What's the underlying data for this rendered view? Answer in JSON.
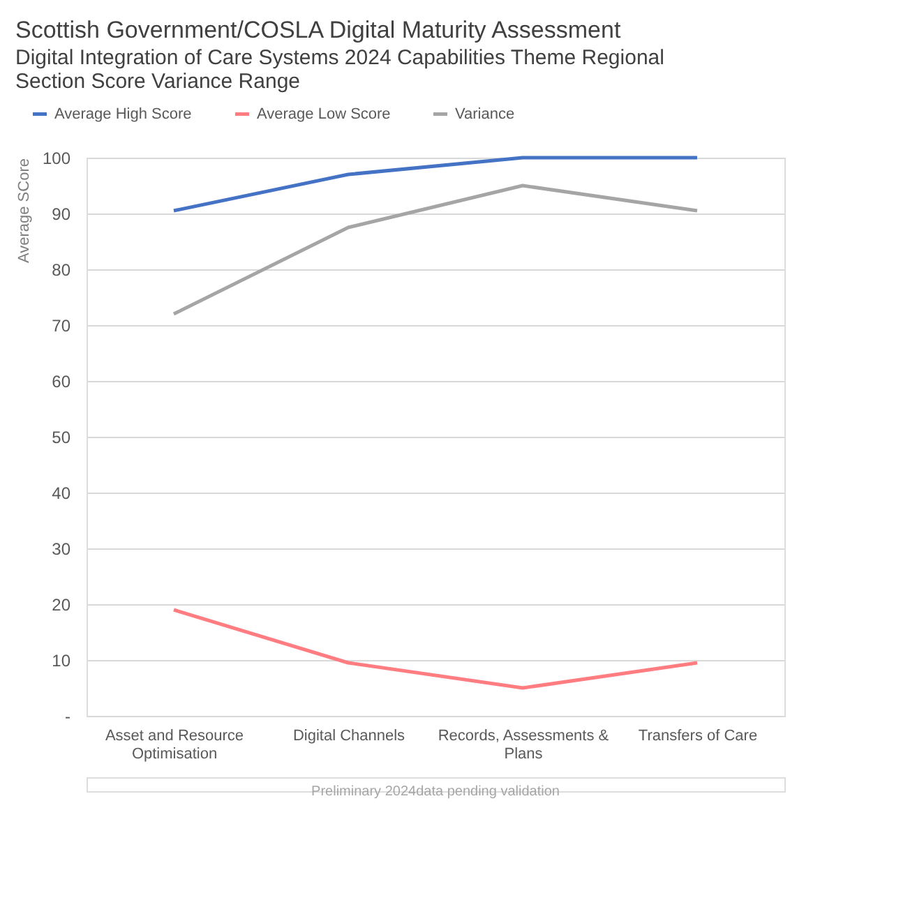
{
  "chart_data": {
    "type": "line",
    "title": "Scottish Government/COSLA Digital Maturity Assessment",
    "subtitle": [
      "Digital Integration of Care Systems 2024 Capabilities Theme Regional",
      "Section Score Variance Range"
    ],
    "ylabel": "Average SCore",
    "categories": [
      "Asset and Resource Optimisation",
      "Digital Channels",
      "Records, Assessments & Plans",
      "Transfers of Care"
    ],
    "series": [
      {
        "name": "Average High Score",
        "color": "#4472c4",
        "values": [
          90.5,
          97,
          100,
          100
        ]
      },
      {
        "name": "Average Low Score",
        "color": "#ff7c80",
        "values": [
          19,
          9.5,
          5,
          9.5
        ]
      },
      {
        "name": "Variance",
        "color": "#a5a5a5",
        "values": [
          72,
          87.5,
          95,
          90.5
        ]
      }
    ],
    "ylim": [
      0,
      100
    ],
    "yticks": [
      {
        "value": 0,
        "label": "-"
      },
      10,
      20,
      30,
      40,
      50,
      60,
      70,
      80,
      90,
      100
    ],
    "grid": "y",
    "legend": "top left",
    "marker": "none",
    "line_style": "solid",
    "annotations": [
      "Preliminary 2024data pending validation"
    ]
  }
}
